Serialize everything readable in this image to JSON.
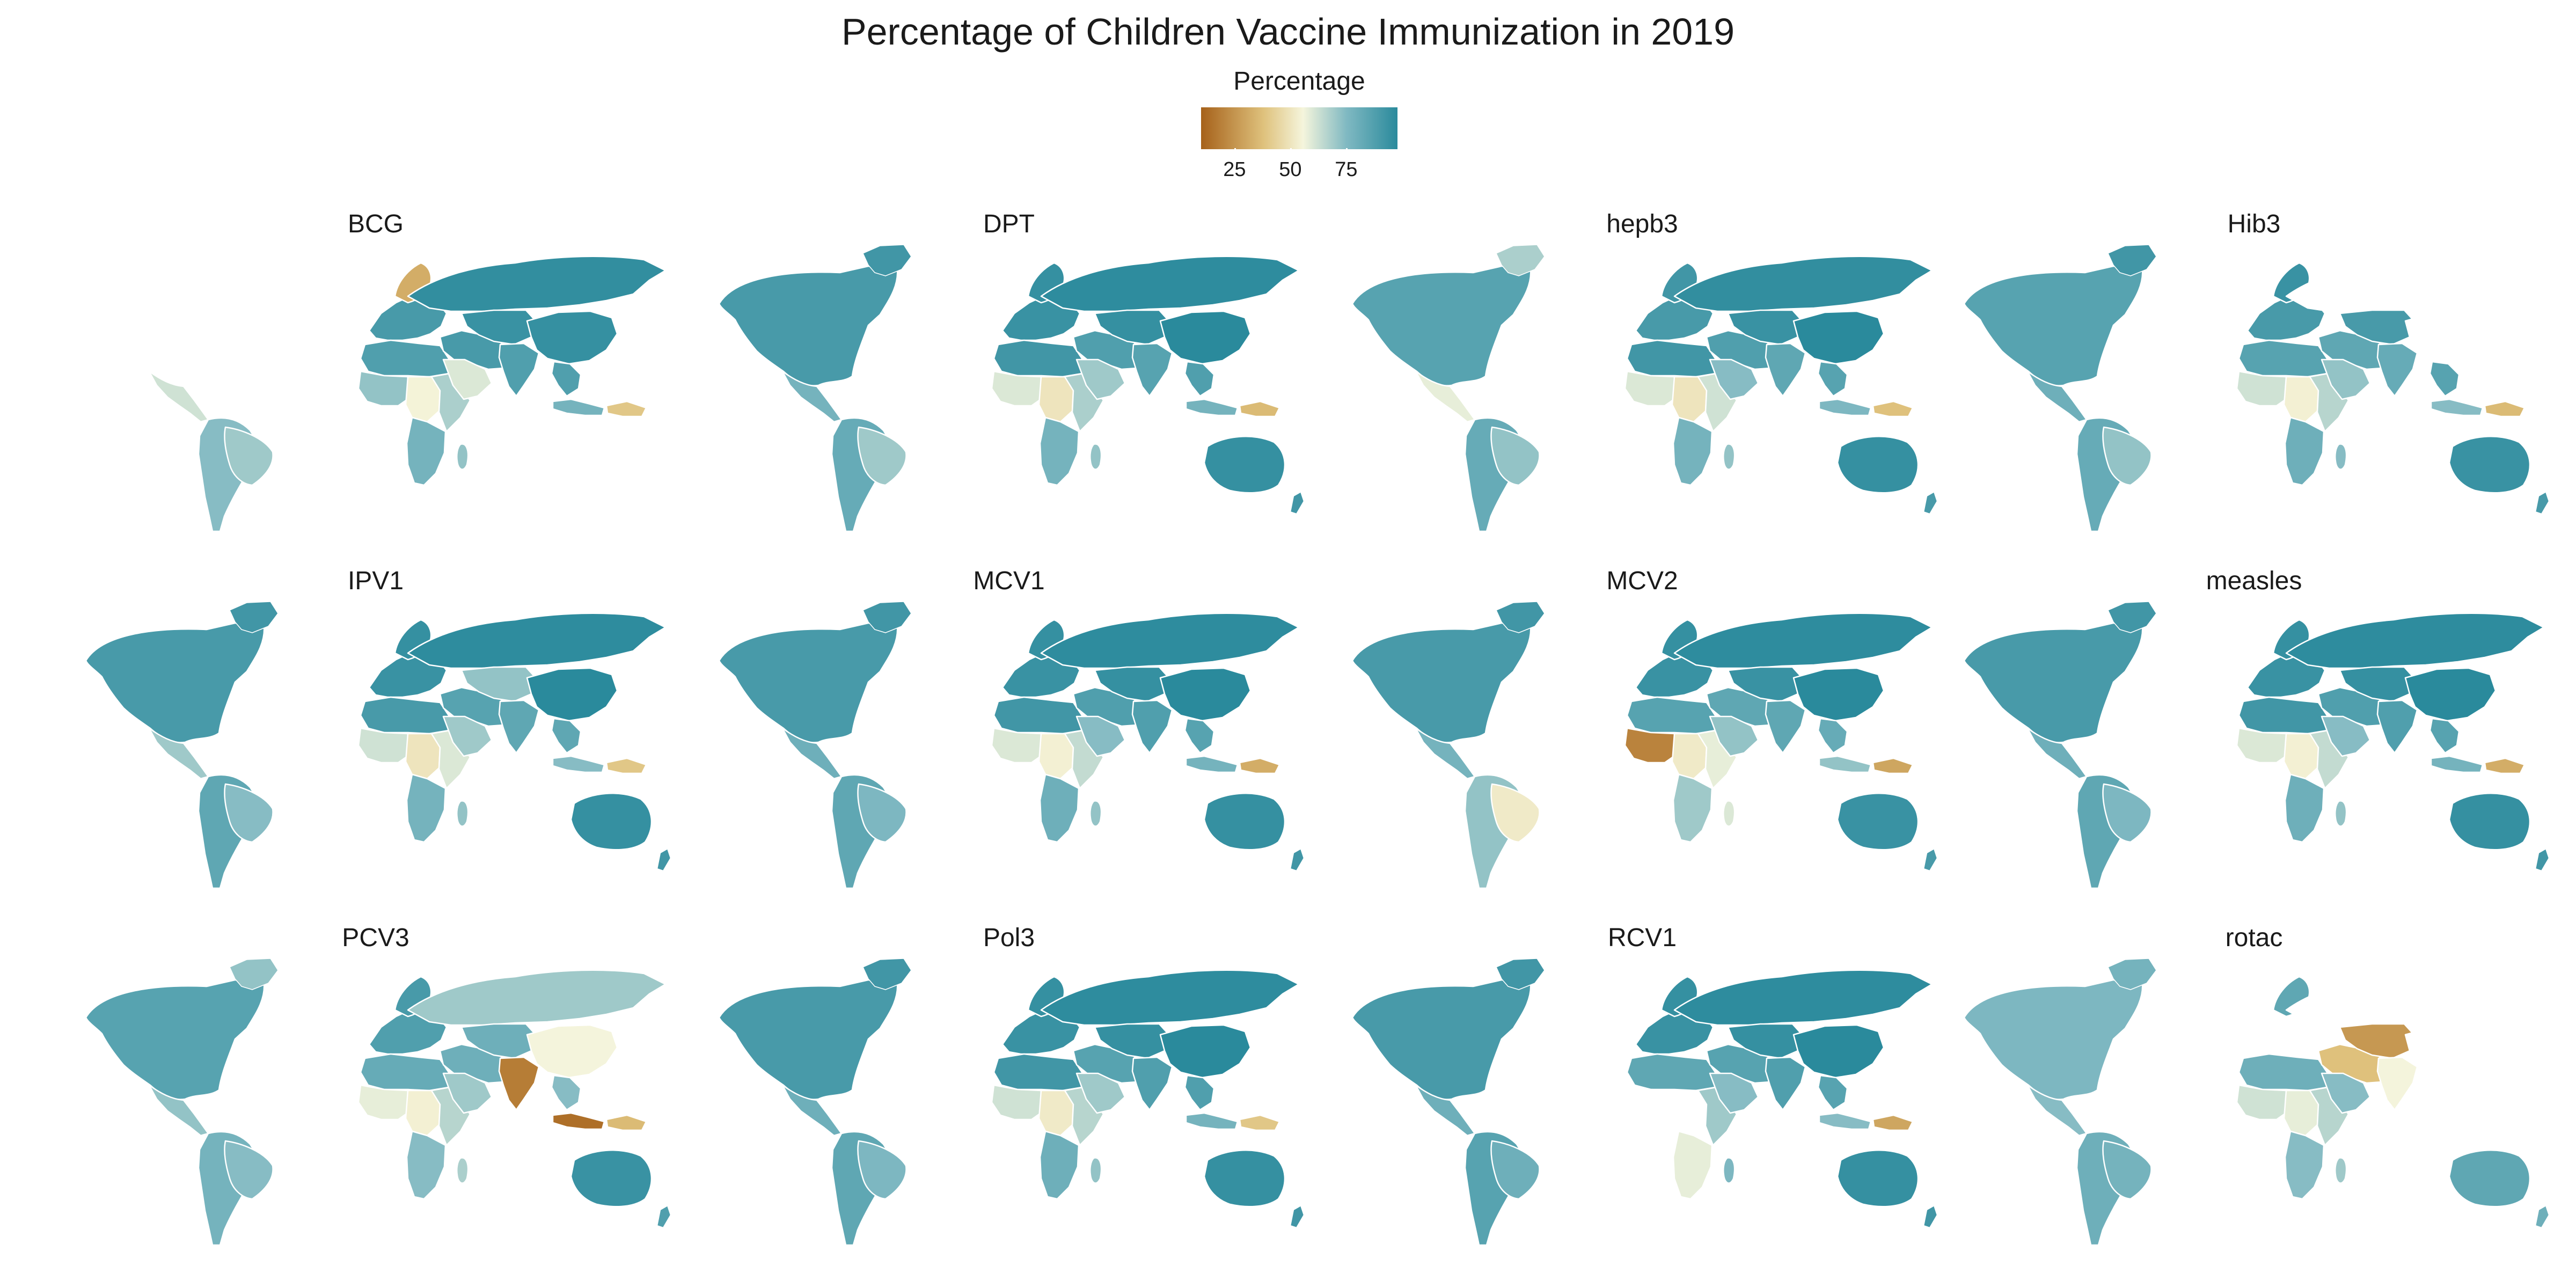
{
  "figure": {
    "title": "Percentage of Children Vaccine Immunization in 2019"
  },
  "legend": {
    "title": "Percentage",
    "ticks": [
      "25",
      "50",
      "75"
    ],
    "tick_values": [
      25,
      50,
      75
    ],
    "range": [
      10,
      98
    ],
    "colors": {
      "low": "#a6611a",
      "mid_low": "#dfc27d",
      "mid": "#f5f5dc",
      "mid_high": "#80b9c2",
      "high": "#2a8a9c"
    }
  },
  "chart_data": {
    "type": "choropleth",
    "title": "Percentage of Children Vaccine Immunization in 2019",
    "value_label": "Percentage",
    "scale": {
      "min": 10,
      "max": 98,
      "ticks": [
        25,
        50,
        75
      ]
    },
    "panels": [
      {
        "name": "BCG",
        "values": {
          "north_america": null,
          "greenland": null,
          "central_america": 62,
          "south_america": 74,
          "brazil": 70,
          "europe": 90,
          "scandinavia": 32,
          "north_africa": 88,
          "west_africa": 72,
          "central_africa": 55,
          "east_africa": 68,
          "southern_africa": 78,
          "madagascar": 72,
          "middle_east": 90,
          "arabia": 60,
          "russia": 96,
          "central_asia": 94,
          "south_asia": 88,
          "china": 95,
          "southeast_asia": 88,
          "indonesia": 78,
          "papua": 40,
          "australia": null,
          "new_zealand": null
        }
      },
      {
        "name": "DPT",
        "values": {
          "north_america": 90,
          "greenland": 92,
          "central_america": 78,
          "south_america": 82,
          "brazil": 70,
          "europe": 94,
          "scandinavia": 95,
          "north_africa": 92,
          "west_africa": 60,
          "central_africa": 50,
          "east_africa": 68,
          "southern_africa": 78,
          "madagascar": 72,
          "middle_east": 88,
          "arabia": 70,
          "russia": 97,
          "central_asia": 95,
          "south_asia": 86,
          "china": 98,
          "southeast_asia": 88,
          "indonesia": 78,
          "papua": 36,
          "australia": 95,
          "new_zealand": 92
        }
      },
      {
        "name": "hepb3",
        "values": {
          "north_america": 86,
          "greenland": 68,
          "central_america": 58,
          "south_america": 82,
          "brazil": 72,
          "europe": 90,
          "scandinavia": 92,
          "north_africa": 92,
          "west_africa": 60,
          "central_africa": 50,
          "east_africa": 62,
          "southern_africa": 78,
          "madagascar": 72,
          "middle_east": 88,
          "arabia": 74,
          "russia": 96,
          "central_asia": 94,
          "south_asia": 84,
          "china": 98,
          "southeast_asia": 86,
          "indonesia": 76,
          "papua": 38,
          "australia": 95,
          "new_zealand": 90
        }
      },
      {
        "name": "Hib3",
        "values": {
          "north_america": 86,
          "greenland": 92,
          "central_america": 80,
          "south_america": 82,
          "brazil": 72,
          "europe": 90,
          "scandinavia": 94,
          "north_africa": 86,
          "west_africa": 62,
          "central_africa": 54,
          "east_africa": 66,
          "southern_africa": 80,
          "madagascar": 74,
          "middle_east": 84,
          "arabia": 72,
          "russia": null,
          "central_asia": 90,
          "south_asia": 82,
          "china": null,
          "southeast_asia": 86,
          "indonesia": 74,
          "papua": 36,
          "australia": 94,
          "new_zealand": 90
        }
      },
      {
        "name": "IPV1",
        "values": {
          "north_america": 90,
          "greenland": 92,
          "central_america": 70,
          "south_america": 84,
          "brazil": 74,
          "europe": 94,
          "scandinavia": 95,
          "north_africa": 90,
          "west_africa": 62,
          "central_africa": 50,
          "east_africa": 60,
          "southern_africa": 78,
          "madagascar": 72,
          "middle_east": 86,
          "arabia": 70,
          "russia": 97,
          "central_asia": 72,
          "south_asia": 84,
          "china": 98,
          "southeast_asia": 84,
          "indonesia": 74,
          "papua": 40,
          "australia": 95,
          "new_zealand": 92
        }
      },
      {
        "name": "MCV1",
        "values": {
          "north_america": 90,
          "greenland": 92,
          "central_america": 80,
          "south_america": 84,
          "brazil": 76,
          "europe": 94,
          "scandinavia": 95,
          "north_africa": 92,
          "west_africa": 60,
          "central_africa": 54,
          "east_africa": 64,
          "southern_africa": 80,
          "madagascar": 72,
          "middle_east": 88,
          "arabia": 74,
          "russia": 97,
          "central_asia": 95,
          "south_asia": 88,
          "china": 98,
          "southeast_asia": 86,
          "indonesia": 78,
          "papua": 32,
          "australia": 95,
          "new_zealand": 92
        }
      },
      {
        "name": "MCV2",
        "values": {
          "north_america": 90,
          "greenland": 92,
          "central_america": 78,
          "south_america": 72,
          "brazil": 52,
          "europe": 94,
          "scandinavia": 95,
          "north_africa": 86,
          "west_africa": 20,
          "central_africa": 52,
          "east_africa": 58,
          "southern_africa": 70,
          "madagascar": 60,
          "middle_east": 84,
          "arabia": 72,
          "russia": 97,
          "central_asia": 94,
          "south_asia": 84,
          "china": 98,
          "southeast_asia": 82,
          "indonesia": 72,
          "papua": 30,
          "australia": 94,
          "new_zealand": 90
        }
      },
      {
        "name": "measles",
        "values": {
          "north_america": 90,
          "greenland": 92,
          "central_america": 80,
          "south_america": 84,
          "brazil": 76,
          "europe": 94,
          "scandinavia": 95,
          "north_africa": 92,
          "west_africa": 60,
          "central_africa": 54,
          "east_africa": 64,
          "southern_africa": 80,
          "madagascar": 72,
          "middle_east": 88,
          "arabia": 74,
          "russia": 97,
          "central_asia": 95,
          "south_asia": 88,
          "china": 98,
          "southeast_asia": 86,
          "indonesia": 78,
          "papua": 32,
          "australia": 95,
          "new_zealand": 92
        }
      },
      {
        "name": "PCV3",
        "values": {
          "north_america": 86,
          "greenland": 72,
          "central_america": 72,
          "south_america": 78,
          "brazil": 74,
          "europe": 88,
          "scandinavia": 90,
          "north_africa": 82,
          "west_africa": 58,
          "central_africa": 54,
          "east_africa": 66,
          "southern_africa": 74,
          "madagascar": 68,
          "middle_east": 80,
          "arabia": 70,
          "russia": 70,
          "central_asia": 80,
          "south_asia": 18,
          "china": 56,
          "southeast_asia": 74,
          "indonesia": 14,
          "papua": 36,
          "australia": 94,
          "new_zealand": 88
        }
      },
      {
        "name": "Pol3",
        "values": {
          "north_america": 90,
          "greenland": 92,
          "central_america": 80,
          "south_america": 84,
          "brazil": 76,
          "europe": 94,
          "scandinavia": 95,
          "north_africa": 92,
          "west_africa": 62,
          "central_africa": 52,
          "east_africa": 66,
          "southern_africa": 80,
          "madagascar": 72,
          "middle_east": 86,
          "arabia": 70,
          "russia": 97,
          "central_asia": 95,
          "south_asia": 88,
          "china": 98,
          "southeast_asia": 88,
          "indonesia": 78,
          "papua": 40,
          "australia": 95,
          "new_zealand": 92
        }
      },
      {
        "name": "RCV1",
        "values": {
          "north_america": 90,
          "greenland": 92,
          "central_america": 80,
          "south_america": 86,
          "brazil": 80,
          "europe": 94,
          "scandinavia": 95,
          "north_africa": 84,
          "west_africa": null,
          "central_africa": null,
          "east_africa": 70,
          "southern_africa": 58,
          "madagascar": 76,
          "middle_east": 86,
          "arabia": 74,
          "russia": 97,
          "central_asia": 95,
          "south_asia": 88,
          "china": 98,
          "southeast_asia": 86,
          "indonesia": 74,
          "papua": 30,
          "australia": 95,
          "new_zealand": 92
        }
      },
      {
        "name": "rotac",
        "values": {
          "north_america": 76,
          "greenland": 78,
          "central_america": 74,
          "south_america": 80,
          "brazil": 78,
          "europe": null,
          "scandinavia": 84,
          "north_africa": 80,
          "west_africa": 62,
          "central_africa": 58,
          "east_africa": 66,
          "southern_africa": 74,
          "madagascar": 70,
          "middle_east": 38,
          "arabia": 74,
          "russia": null,
          "central_asia": 26,
          "south_asia": 56,
          "china": null,
          "southeast_asia": null,
          "indonesia": null,
          "papua": null,
          "australia": 84,
          "new_zealand": 80
        }
      }
    ]
  }
}
